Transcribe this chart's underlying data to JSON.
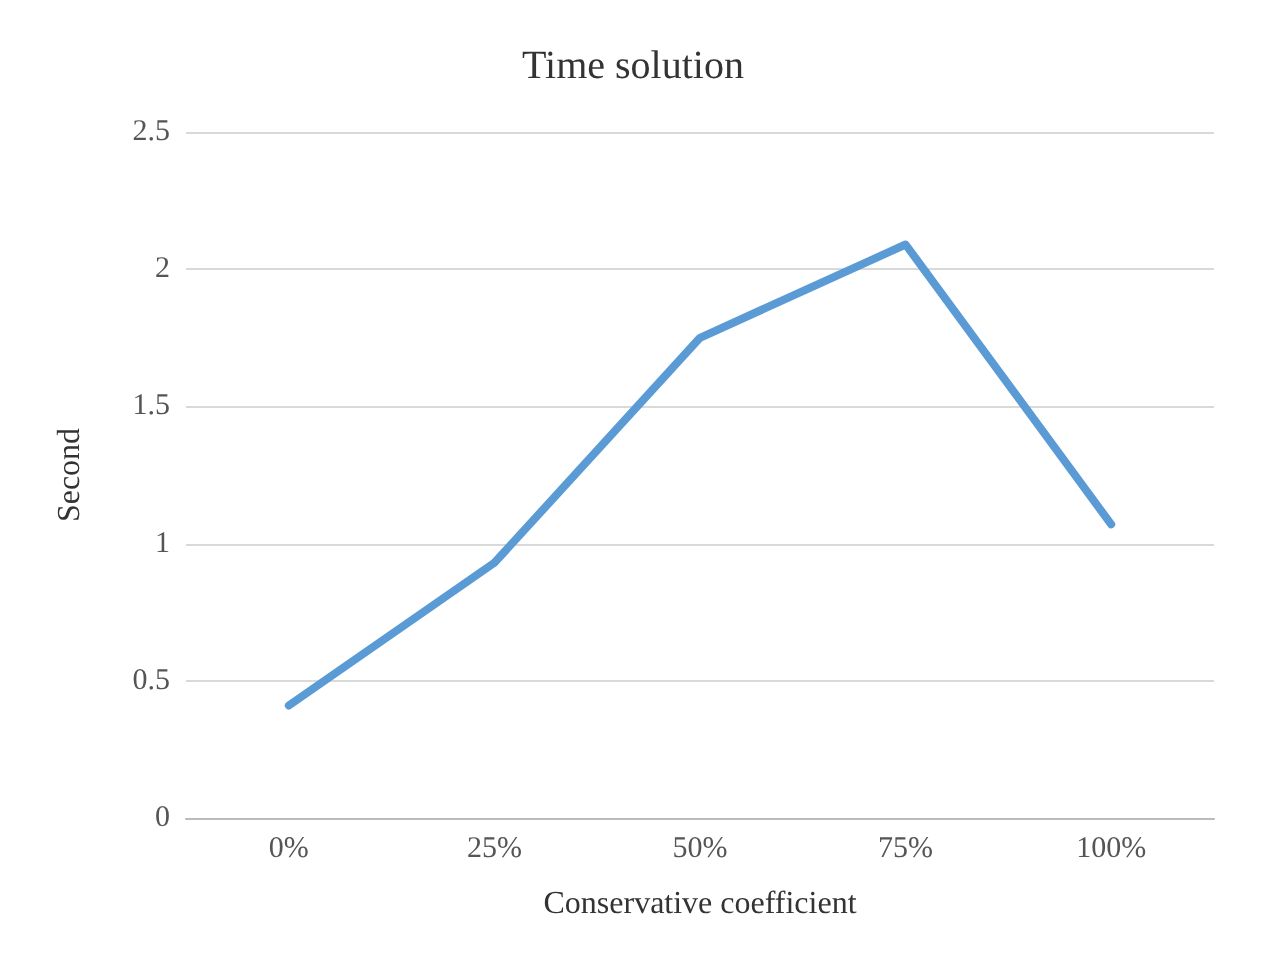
{
  "chart_data": {
    "type": "line",
    "title": "Time solution",
    "xlabel": "Conservative coefficient",
    "ylabel": "Second",
    "categories": [
      "0%",
      "25%",
      "50%",
      "75%",
      "100%"
    ],
    "series": [
      {
        "color": "#5b9bd5",
        "values": [
          0.41,
          0.93,
          1.75,
          2.09,
          1.07
        ]
      }
    ],
    "ylim": [
      0,
      2.5
    ],
    "yticks": [
      0,
      0.5,
      1,
      1.5,
      2,
      2.5
    ],
    "grid": "y",
    "marker": "none",
    "line_style": "solid"
  }
}
